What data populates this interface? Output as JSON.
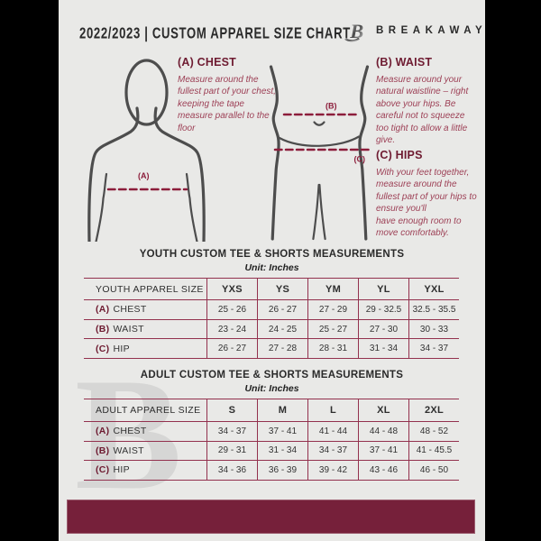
{
  "header": {
    "title": "2022/2023  |  CUSTOM APPAREL SIZE CHART",
    "brand": "BREAKAWAY",
    "logo_letter": "B"
  },
  "guide": {
    "chest_label": "(A)",
    "waist_label": "(B)",
    "hips_label": "(C)",
    "sections": [
      {
        "heading": "(A) CHEST",
        "description": "Measure around the fullest part of your chest, keeping the tape measure parallel to the floor"
      },
      {
        "heading": "(B) WAIST",
        "description": "Measure around your natural waistline – right above your hips. Be careful not to squeeze too tight to allow a little give."
      },
      {
        "heading": "(C) HIPS",
        "description": "With your feet together, measure around the fullest part of your hips to ensure you'll\nhave enough room to move comfortably."
      }
    ]
  },
  "tables": [
    {
      "title": "YOUTH CUSTOM TEE & SHORTS MEASUREMENTS",
      "unit": "Unit: Inches",
      "size_header": "YOUTH APPAREL SIZE",
      "sizes": [
        "YXS",
        "YS",
        "YM",
        "YL",
        "YXL"
      ],
      "rows": [
        {
          "key": "(A)",
          "label": "CHEST",
          "values": [
            "25 - 26",
            "26 - 27",
            "27 - 29",
            "29 - 32.5",
            "32.5 - 35.5"
          ]
        },
        {
          "key": "(B)",
          "label": "WAIST",
          "values": [
            "23 - 24",
            "24 - 25",
            "25 - 27",
            "27 - 30",
            "30 - 33"
          ]
        },
        {
          "key": "(C)",
          "label": "HIP",
          "values": [
            "26 - 27",
            "27 - 28",
            "28 - 31",
            "31 - 34",
            "34 - 37"
          ]
        }
      ]
    },
    {
      "title": "ADULT CUSTOM TEE & SHORTS MEASUREMENTS",
      "unit": "Unit: Inches",
      "size_header": "ADULT APPAREL SIZE",
      "sizes": [
        "S",
        "M",
        "L",
        "XL",
        "2XL"
      ],
      "rows": [
        {
          "key": "(A)",
          "label": "CHEST",
          "values": [
            "34 - 37",
            "37 - 41",
            "41 - 44",
            "44 - 48",
            "48 - 52"
          ]
        },
        {
          "key": "(B)",
          "label": "WAIST",
          "values": [
            "29 - 31",
            "31 - 34",
            "34 - 37",
            "37 - 41",
            "41 - 45.5"
          ]
        },
        {
          "key": "(C)",
          "label": "HIP",
          "values": [
            "34 - 36",
            "36 - 39",
            "39 - 42",
            "43 - 46",
            "46 - 50"
          ]
        }
      ]
    }
  ],
  "colors": {
    "maroon_dark": "#6e1b31",
    "maroon_mid": "#9d4056",
    "maroon_accent": "#8c1d3b",
    "footer_bar": "#76203a",
    "table_line": "#93314e",
    "figure_stroke": "#4d4d4d",
    "page_bg": "#e9e9e7",
    "frame_bg": "#000000"
  }
}
